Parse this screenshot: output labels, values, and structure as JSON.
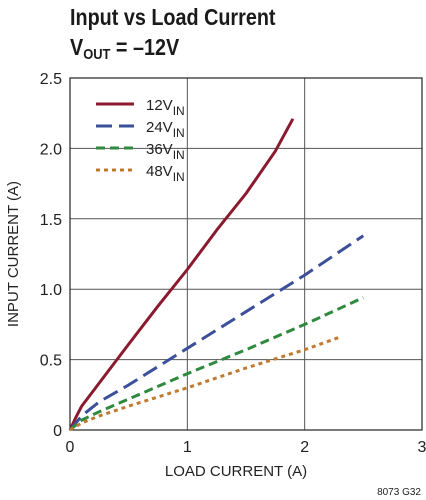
{
  "title_line1": "Input vs Load Current",
  "title_line2_main": "V",
  "title_line2_sub": "OUT",
  "title_line2_rest": " = –12V",
  "figure_id": "8073 G32",
  "chart_data": {
    "type": "line",
    "title": "Input vs Load Current",
    "subtitle": "VOUT = –12V",
    "xlabel": "LOAD CURRENT (A)",
    "ylabel": "INPUT CURRENT (A)",
    "xlim": [
      0,
      3
    ],
    "ylim": [
      0,
      2.5
    ],
    "xticks": [
      0,
      1,
      2,
      3
    ],
    "yticks": [
      0,
      0.5,
      1.0,
      1.5,
      2.0,
      2.5
    ],
    "ytick_labels": [
      "0",
      "0.5",
      "1.0",
      "1.5",
      "2.0",
      "2.5"
    ],
    "grid": true,
    "legend_position": "top-left",
    "series": [
      {
        "name": "12V",
        "name_sub": "IN",
        "color": "#8b1a2e",
        "dash": "solid",
        "x": [
          0,
          0.05,
          0.1,
          0.2,
          0.3,
          0.5,
          0.75,
          1.0,
          1.25,
          1.5,
          1.75,
          1.9
        ],
        "y": [
          0,
          0.09,
          0.17,
          0.28,
          0.39,
          0.61,
          0.88,
          1.14,
          1.42,
          1.68,
          1.98,
          2.21
        ]
      },
      {
        "name": "24V",
        "name_sub": "IN",
        "color": "#3b4f9a",
        "dash": "long",
        "x": [
          0,
          0.1,
          0.25,
          0.5,
          1.0,
          1.5,
          2.0,
          2.5
        ],
        "y": [
          0,
          0.1,
          0.2,
          0.32,
          0.58,
          0.84,
          1.1,
          1.38
        ]
      },
      {
        "name": "36V",
        "name_sub": "IN",
        "color": "#2e8a3e",
        "dash": "medium",
        "x": [
          0,
          0.1,
          0.25,
          0.5,
          1.0,
          1.5,
          2.0,
          2.5
        ],
        "y": [
          0,
          0.07,
          0.13,
          0.22,
          0.4,
          0.57,
          0.75,
          0.94
        ]
      },
      {
        "name": "48V",
        "name_sub": "IN",
        "color": "#c07a30",
        "dash": "dotted",
        "x": [
          0,
          0.1,
          0.25,
          0.5,
          1.0,
          1.5,
          2.0,
          2.3
        ],
        "y": [
          0,
          0.05,
          0.1,
          0.17,
          0.3,
          0.44,
          0.57,
          0.66
        ]
      }
    ]
  }
}
